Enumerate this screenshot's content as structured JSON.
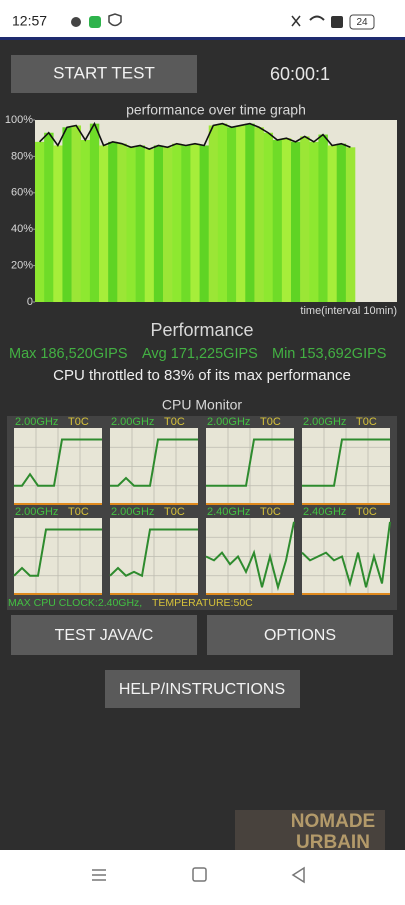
{
  "status_bar": {
    "time": "12:57",
    "battery": "24"
  },
  "controls": {
    "start_button": "START TEST",
    "timer": "60:00:1"
  },
  "graph": {
    "title": "performance over time graph",
    "ylim": [
      0,
      100
    ],
    "yticks": [
      0,
      {
        "value": 20,
        "label": "20%"
      },
      {
        "value": 40,
        "label": "40%"
      },
      {
        "value": 60,
        "label": "60%"
      },
      {
        "value": 80,
        "label": "80%"
      },
      {
        "value": 100,
        "label": "100%"
      }
    ],
    "x_label": "time(interval 10min)",
    "values": [
      88,
      93,
      86,
      96,
      97,
      89,
      98,
      86,
      88,
      87,
      85,
      86,
      84,
      86,
      85,
      87,
      86,
      87,
      86,
      97,
      98,
      96,
      97,
      98,
      96,
      93,
      89,
      90,
      88,
      91,
      88,
      92,
      86,
      87,
      85
    ]
  },
  "performance": {
    "heading": "Performance",
    "max": "Max 186,520GIPS",
    "avg": "Avg 171,225GIPS",
    "min": "Min 153,692GIPS",
    "throttle_note": "CPU throttled to 83% of its max performance"
  },
  "cpu_monitor": {
    "title": "CPU Monitor",
    "cores": [
      {
        "clock": "2.00GHz",
        "temp": "T0C",
        "trace": [
          25,
          25,
          40,
          25,
          25,
          25,
          85,
          85,
          85,
          85,
          85,
          85
        ]
      },
      {
        "clock": "2.00GHz",
        "temp": "T0C",
        "trace": [
          25,
          25,
          35,
          25,
          25,
          25,
          85,
          85,
          85,
          85,
          85,
          85
        ]
      },
      {
        "clock": "2.00GHz",
        "temp": "T0C",
        "trace": [
          25,
          25,
          25,
          25,
          25,
          25,
          85,
          85,
          85,
          85,
          85,
          85
        ]
      },
      {
        "clock": "2.00GHz",
        "temp": "T0C",
        "trace": [
          25,
          25,
          25,
          25,
          25,
          85,
          85,
          85,
          85,
          85,
          85,
          85
        ]
      },
      {
        "clock": "2.00GHz",
        "temp": "T0C",
        "trace": [
          25,
          35,
          25,
          25,
          85,
          85,
          85,
          85,
          85,
          85,
          85,
          85
        ]
      },
      {
        "clock": "2.00GHz",
        "temp": "T0C",
        "trace": [
          25,
          35,
          25,
          30,
          25,
          85,
          85,
          85,
          85,
          85,
          85,
          85
        ]
      },
      {
        "clock": "2.40GHz",
        "temp": "T0C",
        "trace": [
          50,
          45,
          55,
          40,
          50,
          30,
          55,
          10,
          50,
          10,
          45,
          95
        ]
      },
      {
        "clock": "2.40GHz",
        "temp": "T0C",
        "trace": [
          55,
          45,
          50,
          55,
          45,
          50,
          15,
          55,
          10,
          50,
          15,
          95
        ]
      }
    ],
    "max_clock": "MAX CPU CLOCK:2.40GHz,",
    "temperature": "TEMPERATURE:50C"
  },
  "buttons": {
    "test": "TEST JAVA/C",
    "options": "OPTIONS",
    "help": "HELP/INSTRUCTIONS"
  },
  "watermark": {
    "line1": "NOMADE",
    "line2": "URBAIN"
  }
}
